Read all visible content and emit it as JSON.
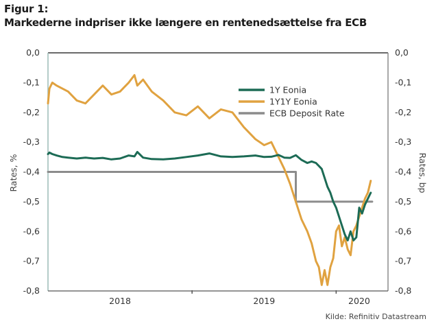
{
  "figure": {
    "label": "Figur 1:",
    "title": "Markederne indpriser ikke længere en rentenedsættelse fra ECB",
    "source": "Kilde: Refinitiv Datastream"
  },
  "chart_data": {
    "type": "line",
    "title": "Markederne indpriser ikke længere en rentenedsættelse fra ECB",
    "xlabel": "",
    "ylabel": "Rates, %",
    "y2label": "Rates, bp",
    "xlim": [
      2018.0,
      2020.36
    ],
    "ylim": [
      -0.8,
      0.0
    ],
    "y2lim": [
      -0.8,
      0.0
    ],
    "grid": false,
    "legend_position": "top-right",
    "x_tick_positions": [
      2019.0,
      2020.0
    ],
    "x_tick_labels": [
      {
        "label": "2018",
        "x": 2018.5
      },
      {
        "label": "2019",
        "x": 2019.5
      },
      {
        "label": "2020",
        "x": 2020.16
      }
    ],
    "y_ticks": [
      0.0,
      -0.1,
      -0.2,
      -0.3,
      -0.4,
      -0.5,
      -0.6,
      -0.7,
      -0.8
    ],
    "y_tick_labels": [
      "0,0",
      "-0,1",
      "-0,2",
      "-0,3",
      "-0,4",
      "-0,5",
      "-0,6",
      "-0,7",
      "-0,8"
    ],
    "series": [
      {
        "name": "1Y Eonia",
        "color": "#1c6b55",
        "x": [
          2018.0,
          2018.01,
          2018.03,
          2018.06,
          2018.1,
          2018.14,
          2018.2,
          2018.26,
          2018.32,
          2018.38,
          2018.44,
          2018.5,
          2018.56,
          2018.6,
          2018.62,
          2018.66,
          2018.72,
          2018.8,
          2018.88,
          2018.96,
          2019.04,
          2019.12,
          2019.2,
          2019.28,
          2019.36,
          2019.44,
          2019.5,
          2019.55,
          2019.6,
          2019.64,
          2019.68,
          2019.72,
          2019.76,
          2019.8,
          2019.83,
          2019.86,
          2019.88,
          2019.9,
          2019.92,
          2019.94,
          2019.96,
          2019.98,
          2020.0,
          2020.02,
          2020.04,
          2020.06,
          2020.08,
          2020.1,
          2020.12,
          2020.14,
          2020.16,
          2020.18,
          2020.2,
          2020.22,
          2020.24
        ],
        "y": [
          -0.34,
          -0.335,
          -0.34,
          -0.345,
          -0.35,
          -0.352,
          -0.355,
          -0.352,
          -0.355,
          -0.353,
          -0.358,
          -0.355,
          -0.345,
          -0.348,
          -0.333,
          -0.352,
          -0.357,
          -0.358,
          -0.355,
          -0.35,
          -0.345,
          -0.338,
          -0.348,
          -0.35,
          -0.348,
          -0.345,
          -0.35,
          -0.349,
          -0.343,
          -0.352,
          -0.353,
          -0.344,
          -0.36,
          -0.37,
          -0.365,
          -0.37,
          -0.38,
          -0.39,
          -0.42,
          -0.45,
          -0.47,
          -0.5,
          -0.52,
          -0.55,
          -0.58,
          -0.61,
          -0.63,
          -0.6,
          -0.63,
          -0.62,
          -0.52,
          -0.54,
          -0.51,
          -0.49,
          -0.47
        ]
      },
      {
        "name": "1Y1Y Eonia",
        "color": "#e0a240",
        "x": [
          2018.0,
          2018.01,
          2018.03,
          2018.06,
          2018.1,
          2018.14,
          2018.2,
          2018.26,
          2018.32,
          2018.38,
          2018.44,
          2018.5,
          2018.56,
          2018.6,
          2018.62,
          2018.66,
          2018.72,
          2018.8,
          2018.88,
          2018.96,
          2019.04,
          2019.12,
          2019.2,
          2019.28,
          2019.36,
          2019.44,
          2019.5,
          2019.55,
          2019.6,
          2019.64,
          2019.68,
          2019.72,
          2019.76,
          2019.8,
          2019.83,
          2019.86,
          2019.88,
          2019.9,
          2019.92,
          2019.94,
          2019.96,
          2019.98,
          2020.0,
          2020.02,
          2020.04,
          2020.06,
          2020.08,
          2020.1,
          2020.12,
          2020.14,
          2020.16,
          2020.18,
          2020.2,
          2020.22,
          2020.24
        ],
        "y": [
          -0.17,
          -0.12,
          -0.1,
          -0.11,
          -0.12,
          -0.13,
          -0.16,
          -0.17,
          -0.14,
          -0.11,
          -0.14,
          -0.13,
          -0.1,
          -0.075,
          -0.11,
          -0.09,
          -0.13,
          -0.16,
          -0.2,
          -0.21,
          -0.18,
          -0.22,
          -0.19,
          -0.2,
          -0.25,
          -0.29,
          -0.31,
          -0.3,
          -0.35,
          -0.39,
          -0.44,
          -0.5,
          -0.56,
          -0.6,
          -0.64,
          -0.7,
          -0.72,
          -0.78,
          -0.73,
          -0.78,
          -0.72,
          -0.69,
          -0.6,
          -0.58,
          -0.65,
          -0.62,
          -0.66,
          -0.68,
          -0.6,
          -0.58,
          -0.55,
          -0.52,
          -0.49,
          -0.47,
          -0.43
        ]
      },
      {
        "name": "ECB Deposit Rate",
        "color": "#8c8c8c",
        "x": [
          2018.0,
          2019.72,
          2019.72,
          2020.25
        ],
        "y": [
          -0.4,
          -0.4,
          -0.5,
          -0.5
        ]
      }
    ]
  }
}
